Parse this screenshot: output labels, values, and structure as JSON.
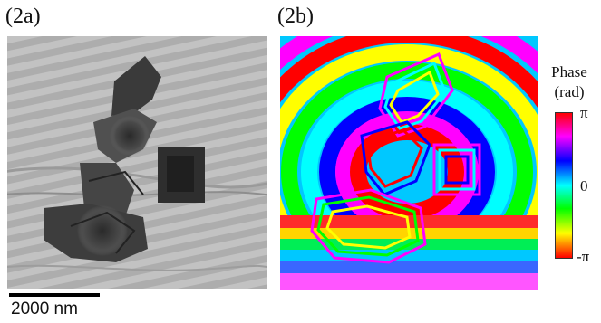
{
  "panels": {
    "a": {
      "label": "(2a)"
    },
    "b": {
      "label": "(2b)"
    }
  },
  "legend": {
    "title": "Phase",
    "unit": "(rad)",
    "ticks": {
      "top": "π",
      "middle": "0",
      "bottom": "-π"
    },
    "colormap": [
      "#ff0000",
      "#ff00ff",
      "#0000ff",
      "#00ffff",
      "#00ff00",
      "#ffff00",
      "#ff0000"
    ]
  },
  "scale_bar": {
    "label": "2000 nm"
  }
}
